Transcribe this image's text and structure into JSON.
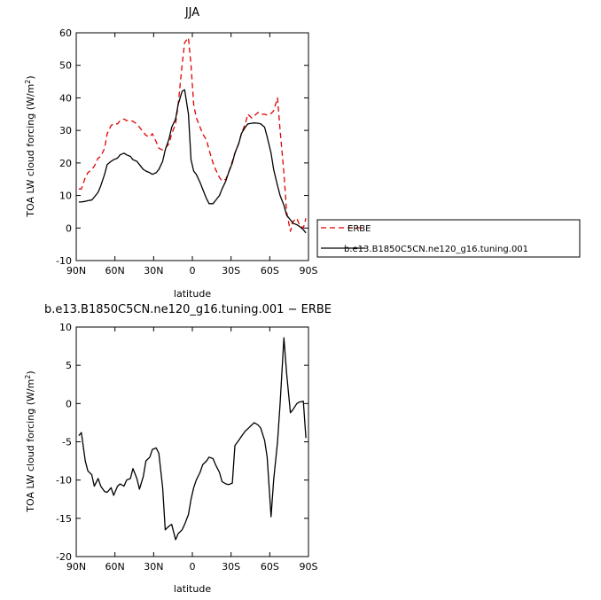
{
  "colors": {
    "model": "#000000",
    "obs": "#e00000"
  },
  "legend": {
    "obs_label": "ERBE",
    "model_label": "b.e13.B1850C5CN.ne120_g16.tuning.001"
  },
  "chart_data": [
    {
      "type": "line",
      "title": "JJA",
      "xlabel": "latitude",
      "ylabel": "TOA LW cloud forcing (W/m",
      "ylabel_sup": "2",
      "ylabel_end": ")",
      "xlim": [
        90,
        -90
      ],
      "ylim": [
        -10,
        60
      ],
      "xticks": [
        90,
        60,
        30,
        0,
        -30,
        -60,
        -90
      ],
      "xtick_labels": [
        "90N",
        "60N",
        "30N",
        "0",
        "30S",
        "60S",
        "90S"
      ],
      "yticks": [
        -10,
        0,
        10,
        20,
        30,
        40,
        50,
        60
      ],
      "ytick_labels": [
        "-10",
        "0",
        "10",
        "20",
        "30",
        "40",
        "50",
        "60"
      ],
      "legend_position": "right",
      "series": [
        {
          "name": "ERBE",
          "style": "dashed",
          "color": "#e00000",
          "x": [
            88,
            86,
            83,
            81,
            78,
            76,
            73,
            71,
            68,
            66,
            63,
            61,
            58,
            56,
            53,
            51,
            48,
            46,
            43,
            41,
            38,
            36,
            33,
            31,
            28,
            26,
            23,
            21,
            18,
            16,
            13,
            11,
            8,
            6,
            3,
            1,
            -1,
            -3,
            -6,
            -8,
            -11,
            -13,
            -16,
            -18,
            -21,
            -23,
            -26,
            -28,
            -31,
            -33,
            -36,
            -38,
            -41,
            -43,
            -46,
            -48,
            -51,
            -53,
            -56,
            -58,
            -61,
            -63,
            -66,
            -68,
            -71,
            -73,
            -76,
            -78,
            -81,
            -83,
            -86,
            -88
          ],
          "values": [
            12,
            12,
            15.5,
            17,
            18,
            19,
            21.5,
            22,
            24.5,
            29,
            31.5,
            32,
            32,
            33,
            33.5,
            33,
            33,
            32.8,
            32,
            31,
            29.5,
            28.5,
            28,
            29,
            26.5,
            24.5,
            24,
            24.5,
            26,
            29,
            32,
            38,
            50,
            57,
            58.5,
            50,
            38,
            34,
            31,
            29,
            27,
            24,
            20,
            18,
            15.5,
            14.5,
            15,
            17,
            20.5,
            23,
            26,
            29,
            32,
            35,
            33.8,
            34.5,
            35.5,
            35,
            35,
            34.7,
            35.2,
            36,
            40,
            30,
            17,
            5,
            -1,
            2,
            3,
            1,
            0,
            3
          ]
        },
        {
          "name": "b.e13.B1850C5CN.ne120_g16.tuning.001",
          "style": "solid",
          "color": "#000000",
          "x": [
            88,
            86,
            83,
            81,
            78,
            76,
            73,
            71,
            68,
            66,
            63,
            61,
            58,
            56,
            53,
            51,
            48,
            46,
            43,
            41,
            38,
            36,
            33,
            31,
            28,
            26,
            23,
            21,
            18,
            16,
            13,
            11,
            8,
            6,
            3,
            1,
            -1,
            -3,
            -6,
            -8,
            -11,
            -13,
            -16,
            -18,
            -21,
            -23,
            -26,
            -28,
            -31,
            -33,
            -36,
            -38,
            -41,
            -43,
            -46,
            -48,
            -51,
            -53,
            -56,
            -58,
            -61,
            -63,
            -66,
            -68,
            -71,
            -73,
            -76,
            -78,
            -81,
            -83,
            -86,
            -88
          ],
          "values": [
            8,
            8,
            8.2,
            8.4,
            8.6,
            9.5,
            11,
            13,
            16.5,
            19.5,
            20.5,
            21,
            21.5,
            22.5,
            23,
            22.5,
            22,
            21,
            20.5,
            19.5,
            18,
            17.5,
            17,
            16.5,
            17,
            18,
            20.5,
            24,
            27.5,
            31,
            33.5,
            38,
            42,
            42.5,
            35,
            21,
            17.5,
            16.5,
            14,
            12,
            9,
            7.5,
            7.5,
            8.5,
            10,
            12,
            14.5,
            17,
            20,
            23,
            26,
            29,
            31,
            32,
            32.2,
            32.3,
            32.2,
            32,
            31,
            28,
            23,
            18,
            13,
            10,
            7,
            4,
            2.5,
            1.5,
            1,
            0.5,
            -0.5,
            -1.5
          ]
        }
      ]
    },
    {
      "type": "line",
      "title": "b.e13.B1850C5CN.ne120_g16.tuning.001 − ERBE",
      "xlabel": "latitude",
      "ylabel": "TOA LW cloud forcing (W/m",
      "ylabel_sup": "2",
      "ylabel_end": ")",
      "xlim": [
        90,
        -90
      ],
      "ylim": [
        -20,
        10
      ],
      "xticks": [
        90,
        60,
        30,
        0,
        -30,
        -60,
        -90
      ],
      "xtick_labels": [
        "90N",
        "60N",
        "30N",
        "0",
        "30S",
        "60S",
        "90S"
      ],
      "yticks": [
        -20,
        -15,
        -10,
        -5,
        0,
        5,
        10
      ],
      "ytick_labels": [
        "-20",
        "-15",
        "-10",
        "-5",
        "0",
        "5",
        "10"
      ],
      "series": [
        {
          "name": "",
          "style": "solid",
          "color": "#000000",
          "x": [
            88,
            86,
            83,
            81,
            78,
            76,
            73,
            71,
            68,
            66,
            63,
            61,
            58,
            56,
            53,
            51,
            48,
            46,
            43,
            41,
            38,
            36,
            33,
            31,
            28,
            26,
            23,
            21,
            18,
            16,
            13,
            11,
            8,
            6,
            3,
            1,
            -1,
            -3,
            -6,
            -8,
            -11,
            -13,
            -16,
            -18,
            -21,
            -23,
            -26,
            -28,
            -31,
            -33,
            -36,
            -38,
            -41,
            -43,
            -46,
            -48,
            -51,
            -53,
            -56,
            -58,
            -61,
            -63,
            -66,
            -68,
            -71,
            -73,
            -76,
            -78,
            -81,
            -83,
            -86,
            -88
          ],
          "values": [
            -4.2,
            -3.8,
            -7.5,
            -8.8,
            -9.3,
            -10.8,
            -9.8,
            -10.8,
            -11.5,
            -11.6,
            -11,
            -12,
            -10.8,
            -10.5,
            -10.8,
            -10,
            -9.8,
            -8.5,
            -9.8,
            -11.2,
            -9.5,
            -7.5,
            -7,
            -6,
            -5.8,
            -6.5,
            -11,
            -16.5,
            -16,
            -15.8,
            -17.8,
            -17,
            -16.5,
            -15.8,
            -14.5,
            -12.5,
            -11,
            -10,
            -9,
            -8,
            -7.5,
            -7,
            -7.2,
            -8,
            -9,
            -10.2,
            -10.5,
            -10.6,
            -10.4,
            -5.5,
            -4.8,
            -4.3,
            -3.6,
            -3.3,
            -2.8,
            -2.5,
            -2.8,
            -3.2,
            -4.8,
            -7,
            -14.8,
            -10,
            -5,
            0,
            8.6,
            4,
            -1.2,
            -0.8,
            0,
            0.2,
            0.3,
            -4.5
          ]
        }
      ]
    }
  ]
}
